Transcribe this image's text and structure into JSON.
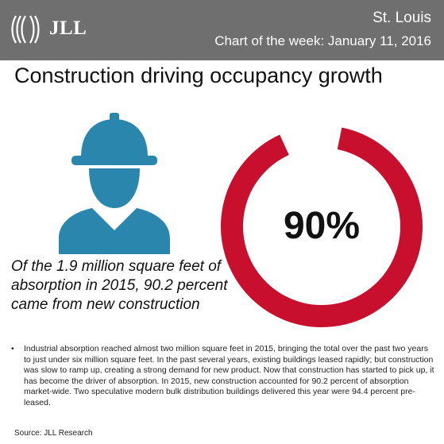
{
  "header": {
    "logo_text": "JLL",
    "city": "St. Louis",
    "chart_of_week": "Chart of the week: January 11, 2016",
    "background_color": "#6f6f6f"
  },
  "title": "Construction driving occupancy growth",
  "icon": "construction-worker-icon",
  "caption": "Of the 1.9 million square feet of absorption in 2015, 90.2 percent came from new construction",
  "chart_data": {
    "type": "pie",
    "style": "donut",
    "center_label": "90%",
    "slices": [
      {
        "value": 90,
        "color": "#c8102e"
      },
      {
        "value": 10,
        "color": "#ffffff"
      }
    ]
  },
  "bullet": "Industrial absorption reached almost two million square feet in 2015, bringing the total over the past two years to just under six million square feet. In the past several years, existing buildings leased rapidly; but construction was slow to ramp up, creating a strong demand for new product. Now that construction has started to pick up, it has become the driver of absorption. In 2015, new construction accounted for 90.2 percent of absorption market-wide. Two speculative modern bulk distribution buildings delivered this year were 94.4 percent pre-leased.",
  "source": "Source: JLL Research",
  "colors": {
    "accent_red": "#c8102e",
    "worker_blue": "#2b86ad"
  }
}
